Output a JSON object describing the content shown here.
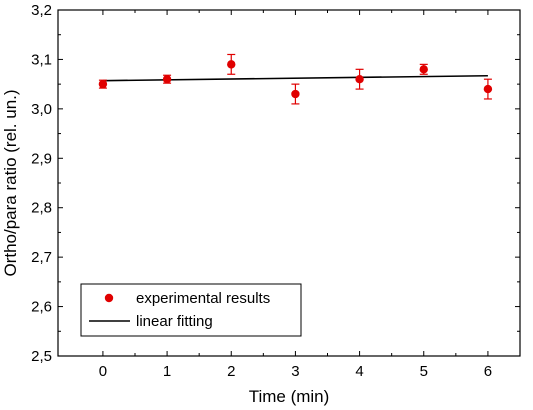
{
  "chart_data": {
    "type": "scatter",
    "xlabel": "Time (min)",
    "ylabel": "Ortho/para ratio (rel. un.)",
    "xlim": [
      -0.7,
      6.5
    ],
    "ylim": [
      2.5,
      3.2
    ],
    "x_ticks": [
      "0",
      "1",
      "2",
      "3",
      "4",
      "5",
      "6"
    ],
    "y_ticks": [
      "2,5",
      "2,6",
      "2,7",
      "2,8",
      "2,9",
      "3,0",
      "3,1",
      "3,2"
    ],
    "grid": false,
    "legend_position": "bottom-left",
    "series": [
      {
        "name": "experimental results",
        "kind": "points-with-error-bars",
        "color": "#e00000",
        "x": [
          0,
          1,
          2,
          3,
          4,
          5,
          6
        ],
        "y": [
          3.05,
          3.06,
          3.09,
          3.03,
          3.06,
          3.08,
          3.04
        ],
        "error": [
          0.008,
          0.008,
          0.02,
          0.02,
          0.02,
          0.01,
          0.02
        ]
      },
      {
        "name": "linear fitting",
        "kind": "line",
        "color": "#000000",
        "x": [
          0,
          6
        ],
        "y": [
          3.057,
          3.067
        ]
      }
    ]
  }
}
